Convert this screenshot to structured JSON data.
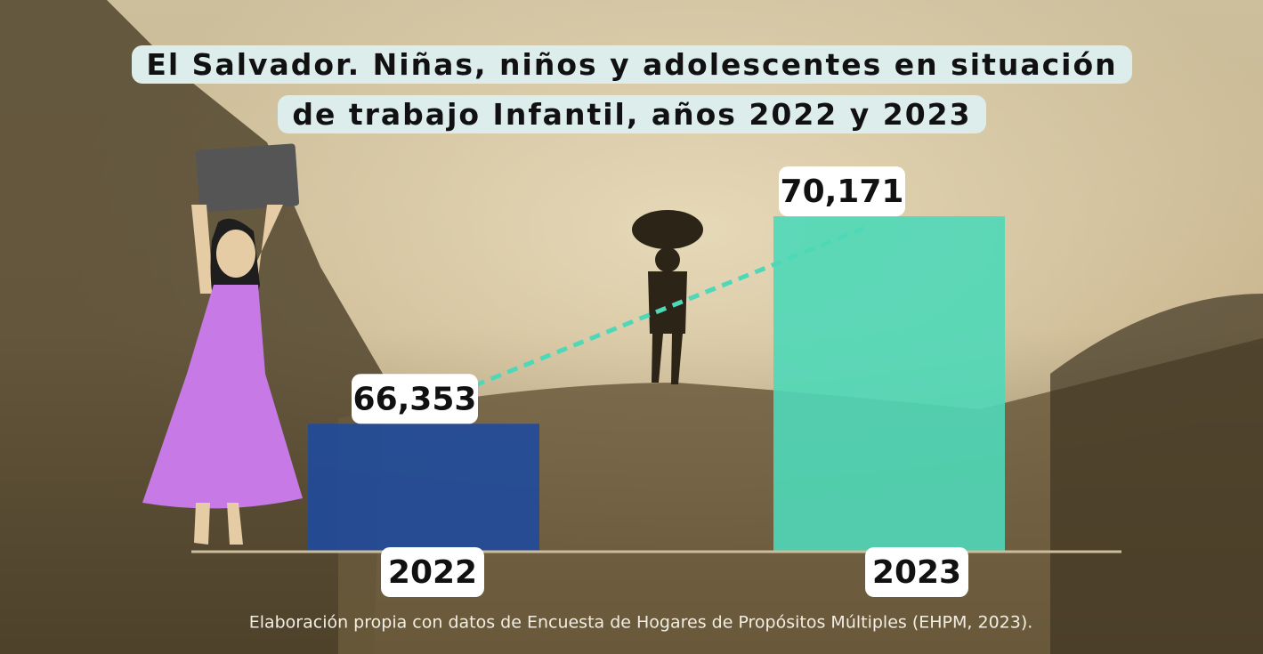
{
  "chart_data": {
    "type": "bar",
    "title": "El Salvador. Niñas, niños y adolescentes en situación de trabajo Infantil, años 2022 y 2023",
    "categories": [
      "2022",
      "2023"
    ],
    "values": [
      66353,
      70171
    ],
    "value_labels": [
      "66,353",
      "70,171"
    ],
    "colors": [
      "#1f4a9c",
      "#4fd8b8"
    ],
    "ylim": [
      64000,
      70500
    ],
    "source": "Elaboración propia con datos de Encuesta de Hogares de Propósitos Múltiples (EHPM, 2023)."
  }
}
